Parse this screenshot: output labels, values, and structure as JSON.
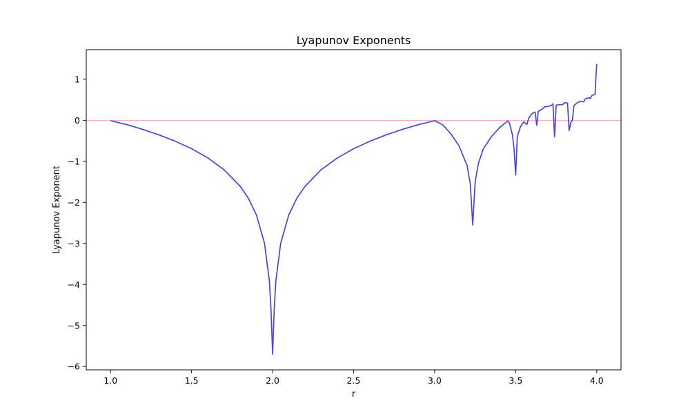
{
  "chart_data": {
    "type": "line",
    "title": "Lyapunov Exponents",
    "xlabel": "r",
    "ylabel": "Lyapunov Exponent",
    "xlim": [
      0.85,
      4.15
    ],
    "ylim": [
      -6.08,
      1.72
    ],
    "xticks": [
      1.0,
      1.5,
      2.0,
      2.5,
      3.0,
      3.5,
      4.0
    ],
    "xtick_labels": [
      "1.0",
      "1.5",
      "2.0",
      "2.5",
      "3.0",
      "3.5",
      "4.0"
    ],
    "yticks": [
      -6,
      -5,
      -4,
      -3,
      -2,
      -1,
      0,
      1
    ],
    "ytick_labels": [
      "−6",
      "−5",
      "−4",
      "−3",
      "−2",
      "−1",
      "0",
      "1"
    ],
    "grid": false,
    "reference_line": {
      "y": 0,
      "color": "#ff9999"
    },
    "series": [
      {
        "color": "#4444ee",
        "points": [
          [
            1.0,
            -0.01
          ],
          [
            1.1,
            -0.105
          ],
          [
            1.2,
            -0.223
          ],
          [
            1.3,
            -0.357
          ],
          [
            1.4,
            -0.511
          ],
          [
            1.5,
            -0.693
          ],
          [
            1.6,
            -0.916
          ],
          [
            1.7,
            -1.204
          ],
          [
            1.8,
            -1.609
          ],
          [
            1.85,
            -1.897
          ],
          [
            1.9,
            -2.303
          ],
          [
            1.95,
            -2.996
          ],
          [
            1.98,
            -3.912
          ],
          [
            1.99,
            -4.6
          ],
          [
            2.0,
            -5.7
          ],
          [
            2.01,
            -4.6
          ],
          [
            2.02,
            -3.912
          ],
          [
            2.05,
            -2.996
          ],
          [
            2.1,
            -2.303
          ],
          [
            2.15,
            -1.897
          ],
          [
            2.2,
            -1.609
          ],
          [
            2.3,
            -1.204
          ],
          [
            2.4,
            -0.916
          ],
          [
            2.5,
            -0.693
          ],
          [
            2.6,
            -0.511
          ],
          [
            2.7,
            -0.357
          ],
          [
            2.8,
            -0.223
          ],
          [
            2.9,
            -0.105
          ],
          [
            3.0,
            -0.01
          ],
          [
            3.05,
            -0.11
          ],
          [
            3.1,
            -0.33
          ],
          [
            3.15,
            -0.62
          ],
          [
            3.2,
            -1.1
          ],
          [
            3.22,
            -1.55
          ],
          [
            3.235,
            -2.55
          ],
          [
            3.25,
            -1.5
          ],
          [
            3.27,
            -1.05
          ],
          [
            3.3,
            -0.7
          ],
          [
            3.35,
            -0.4
          ],
          [
            3.4,
            -0.18
          ],
          [
            3.45,
            -0.02
          ],
          [
            3.46,
            -0.05
          ],
          [
            3.48,
            -0.35
          ],
          [
            3.49,
            -0.7
          ],
          [
            3.5,
            -1.33
          ],
          [
            3.51,
            -0.4
          ],
          [
            3.53,
            -0.15
          ],
          [
            3.55,
            -0.04
          ],
          [
            3.57,
            -0.1
          ],
          [
            3.58,
            0.05
          ],
          [
            3.6,
            0.16
          ],
          [
            3.62,
            0.2
          ],
          [
            3.63,
            -0.12
          ],
          [
            3.64,
            0.22
          ],
          [
            3.66,
            0.26
          ],
          [
            3.68,
            0.33
          ],
          [
            3.7,
            0.34
          ],
          [
            3.72,
            0.36
          ],
          [
            3.73,
            0.4
          ],
          [
            3.74,
            -0.4
          ],
          [
            3.75,
            0.37
          ],
          [
            3.77,
            0.38
          ],
          [
            3.79,
            0.38
          ],
          [
            3.8,
            0.43
          ],
          [
            3.82,
            0.42
          ],
          [
            3.83,
            -0.25
          ],
          [
            3.84,
            -0.05
          ],
          [
            3.85,
            0.0
          ],
          [
            3.86,
            0.36
          ],
          [
            3.88,
            0.43
          ],
          [
            3.9,
            0.46
          ],
          [
            3.92,
            0.45
          ],
          [
            3.93,
            0.52
          ],
          [
            3.95,
            0.55
          ],
          [
            3.96,
            0.53
          ],
          [
            3.97,
            0.6
          ],
          [
            3.98,
            0.62
          ],
          [
            3.99,
            0.64
          ],
          [
            4.0,
            1.37
          ]
        ]
      }
    ]
  }
}
